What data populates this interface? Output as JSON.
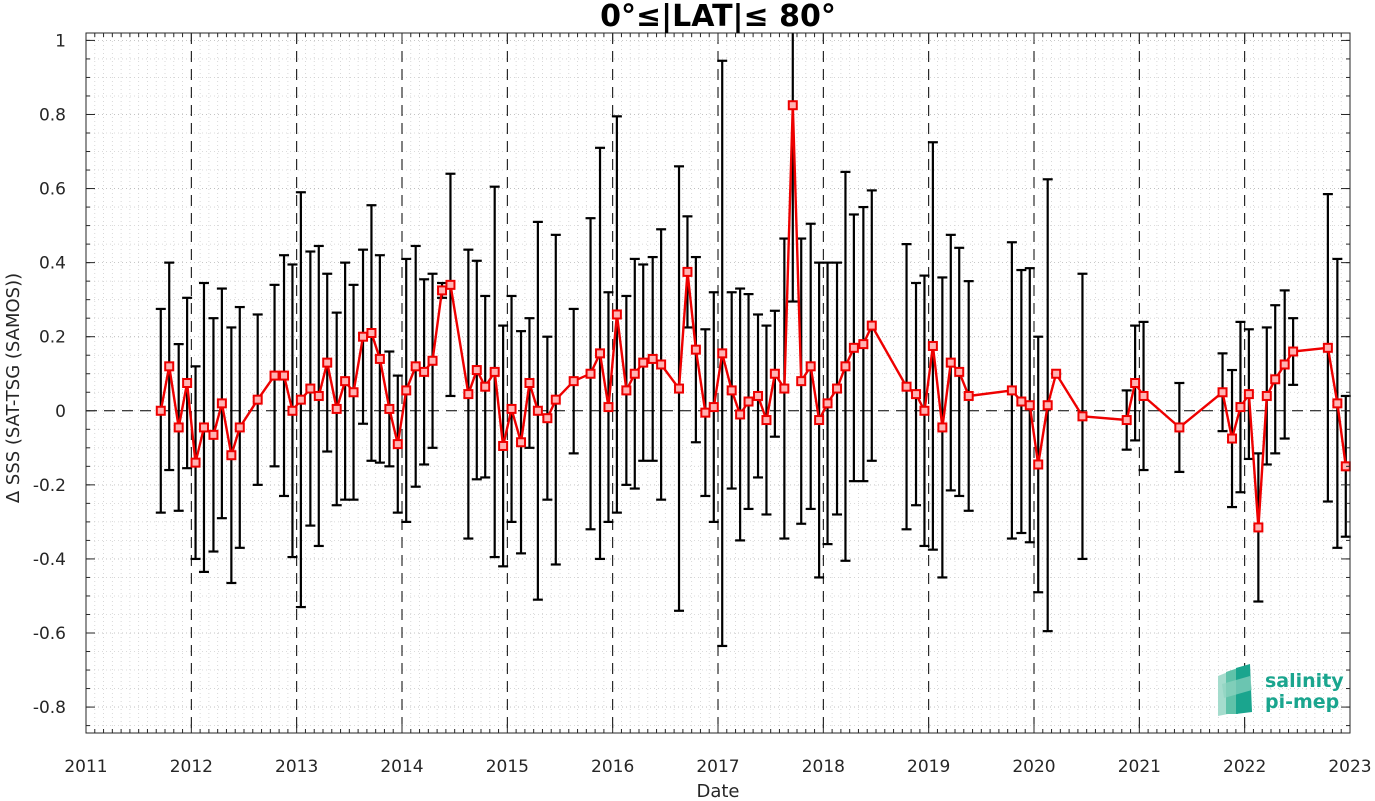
{
  "chart_data": {
    "type": "line",
    "title": "0°≤|LAT|≤ 80°",
    "xlabel": "Date",
    "ylabel": "Δ SSS (SAT-TSG (SAMOS))",
    "xlim": [
      2011,
      2023
    ],
    "ylim": [
      -0.87,
      1.02
    ],
    "x_ticks": [
      2011,
      2012,
      2013,
      2014,
      2015,
      2016,
      2017,
      2018,
      2019,
      2020,
      2021,
      2022,
      2023
    ],
    "x_tick_labels": [
      "2011",
      "2012",
      "2013",
      "2014",
      "2015",
      "2016",
      "2017",
      "2018",
      "2019",
      "2020",
      "2021",
      "2022",
      "2023"
    ],
    "y_ticks": [
      1,
      0.8,
      0.6,
      0.4,
      0.2,
      0,
      -0.2,
      -0.4,
      -0.6,
      -0.8
    ],
    "y_tick_labels": [
      "1",
      "0.8",
      "0.6",
      "0.4",
      "0.2",
      "0",
      "-0.2",
      "-0.4",
      "-0.6",
      "-0.8"
    ],
    "grid": "dotted minor and major",
    "year_separators": "dashed vertical lines at each year",
    "zero_line": "dashed horizontal line at 0",
    "series": [
      {
        "color": "#ee0000",
        "marker": "square",
        "errorbar_color": "#000000",
        "points": [
          [
            2011.71,
            0.0,
            0.275
          ],
          [
            2011.79,
            0.12,
            0.28
          ],
          [
            2011.88,
            -0.045,
            0.225
          ],
          [
            2011.96,
            0.075,
            0.23
          ],
          [
            2012.04,
            -0.14,
            0.26
          ],
          [
            2012.12,
            -0.045,
            0.39
          ],
          [
            2012.21,
            -0.065,
            0.315
          ],
          [
            2012.29,
            0.02,
            0.31
          ],
          [
            2012.38,
            -0.12,
            0.345
          ],
          [
            2012.46,
            -0.045,
            0.325
          ],
          [
            2012.63,
            0.03,
            0.23
          ],
          [
            2012.79,
            0.095,
            0.245
          ],
          [
            2012.88,
            0.095,
            0.325
          ],
          [
            2012.96,
            0.0,
            0.395
          ],
          [
            2013.04,
            0.03,
            0.56
          ],
          [
            2013.13,
            0.06,
            0.37
          ],
          [
            2013.21,
            0.04,
            0.405
          ],
          [
            2013.29,
            0.13,
            0.24
          ],
          [
            2013.38,
            0.005,
            0.26
          ],
          [
            2013.46,
            0.08,
            0.32
          ],
          [
            2013.54,
            0.05,
            0.29
          ],
          [
            2013.63,
            0.2,
            0.235
          ],
          [
            2013.71,
            0.21,
            0.345
          ],
          [
            2013.79,
            0.14,
            0.28
          ],
          [
            2013.88,
            0.005,
            0.155
          ],
          [
            2013.96,
            -0.09,
            0.185
          ],
          [
            2014.04,
            0.055,
            0.355
          ],
          [
            2014.13,
            0.12,
            0.325
          ],
          [
            2014.21,
            0.105,
            0.25
          ],
          [
            2014.29,
            0.135,
            0.235
          ],
          [
            2014.38,
            0.325,
            0.02
          ],
          [
            2014.46,
            0.34,
            0.3
          ],
          [
            2014.63,
            0.045,
            0.39
          ],
          [
            2014.71,
            0.11,
            0.295
          ],
          [
            2014.79,
            0.065,
            0.245
          ],
          [
            2014.88,
            0.105,
            0.5
          ],
          [
            2014.96,
            -0.095,
            0.325
          ],
          [
            2015.04,
            0.005,
            0.305
          ],
          [
            2015.13,
            -0.085,
            0.3
          ],
          [
            2015.21,
            0.075,
            0.175
          ],
          [
            2015.29,
            0.0,
            0.51
          ],
          [
            2015.38,
            -0.02,
            0.22
          ],
          [
            2015.46,
            0.03,
            0.445
          ],
          [
            2015.63,
            0.08,
            0.195
          ],
          [
            2015.79,
            0.1,
            0.42
          ],
          [
            2015.88,
            0.155,
            0.555
          ],
          [
            2015.96,
            0.01,
            0.31
          ],
          [
            2016.04,
            0.26,
            0.535
          ],
          [
            2016.13,
            0.055,
            0.255
          ],
          [
            2016.21,
            0.1,
            0.31
          ],
          [
            2016.29,
            0.13,
            0.265
          ],
          [
            2016.38,
            0.14,
            0.275
          ],
          [
            2016.46,
            0.125,
            0.365
          ],
          [
            2016.63,
            0.06,
            0.6
          ],
          [
            2016.71,
            0.375,
            0.15
          ],
          [
            2016.79,
            0.165,
            0.25
          ],
          [
            2016.88,
            -0.005,
            0.225
          ],
          [
            2016.96,
            0.01,
            0.31
          ],
          [
            2017.04,
            0.155,
            0.79
          ],
          [
            2017.13,
            0.055,
            0.265
          ],
          [
            2017.21,
            -0.01,
            0.34
          ],
          [
            2017.29,
            0.025,
            0.29
          ],
          [
            2017.38,
            0.04,
            0.22
          ],
          [
            2017.46,
            -0.025,
            0.255
          ],
          [
            2017.54,
            0.1,
            0.17
          ],
          [
            2017.63,
            0.06,
            0.405
          ],
          [
            2017.71,
            0.825,
            0.53
          ],
          [
            2017.79,
            0.08,
            0.385
          ],
          [
            2017.88,
            0.12,
            0.385
          ],
          [
            2017.96,
            -0.025,
            0.425
          ],
          [
            2018.04,
            0.02,
            0.38
          ],
          [
            2018.13,
            0.06,
            0.34
          ],
          [
            2018.21,
            0.12,
            0.525
          ],
          [
            2018.29,
            0.17,
            0.36
          ],
          [
            2018.38,
            0.18,
            0.37
          ],
          [
            2018.46,
            0.23,
            0.365
          ],
          [
            2018.79,
            0.065,
            0.385
          ],
          [
            2018.88,
            0.045,
            0.3
          ],
          [
            2018.96,
            0.0,
            0.365
          ],
          [
            2019.04,
            0.175,
            0.55
          ],
          [
            2019.13,
            -0.045,
            0.405
          ],
          [
            2019.21,
            0.13,
            0.345
          ],
          [
            2019.29,
            0.105,
            0.335
          ],
          [
            2019.38,
            0.04,
            0.31
          ],
          [
            2019.79,
            0.055,
            0.4
          ],
          [
            2019.88,
            0.025,
            0.355
          ],
          [
            2019.96,
            0.015,
            0.37
          ],
          [
            2020.04,
            -0.145,
            0.345
          ],
          [
            2020.13,
            0.015,
            0.61
          ],
          [
            2020.21,
            0.1,
            0.0
          ],
          [
            2020.46,
            -0.015,
            0.385
          ],
          [
            2020.88,
            -0.025,
            0.08
          ],
          [
            2020.96,
            0.075,
            0.155
          ],
          [
            2021.04,
            0.04,
            0.2
          ],
          [
            2021.38,
            -0.045,
            0.12
          ],
          [
            2021.79,
            0.05,
            0.105
          ],
          [
            2021.88,
            -0.075,
            0.185
          ],
          [
            2021.96,
            0.01,
            0.23
          ],
          [
            2022.04,
            0.045,
            0.175
          ],
          [
            2022.13,
            -0.315,
            0.2
          ],
          [
            2022.21,
            0.04,
            0.185
          ],
          [
            2022.29,
            0.085,
            0.2
          ],
          [
            2022.38,
            0.125,
            0.2
          ],
          [
            2022.46,
            0.16,
            0.09
          ],
          [
            2022.79,
            0.17,
            0.415
          ],
          [
            2022.88,
            0.02,
            0.39
          ],
          [
            2022.96,
            -0.15,
            0.19
          ]
        ]
      }
    ]
  },
  "logo": {
    "line1": "salinity",
    "line2": "pi-mep",
    "color": "#1aa58e"
  }
}
